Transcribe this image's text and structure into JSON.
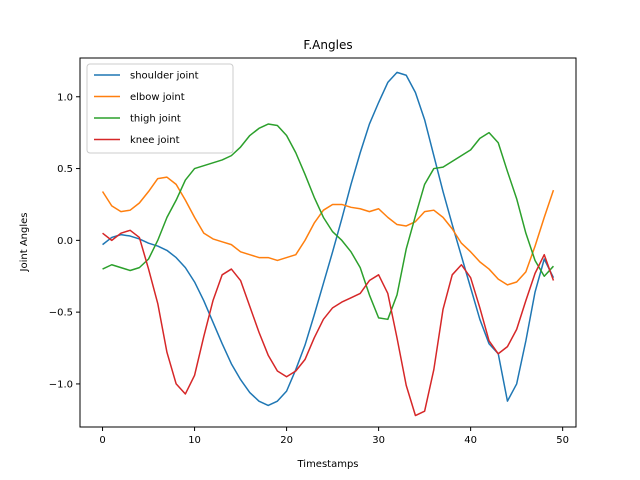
{
  "chart_data": {
    "type": "line",
    "title": "F.Angles",
    "xlabel": "Timestamps",
    "ylabel": "Joint Angles",
    "xlim": [
      -2.45,
      51.45
    ],
    "ylim": [
      -1.3,
      1.27
    ],
    "xticks": [
      0,
      10,
      20,
      30,
      40,
      50
    ],
    "yticks": [
      -1.0,
      -0.5,
      0.0,
      0.5,
      1.0
    ],
    "xtick_labels": [
      "0",
      "10",
      "20",
      "30",
      "40",
      "50"
    ],
    "ytick_labels": [
      "−1.0",
      "−0.5",
      "0.0",
      "0.5",
      "1.0"
    ],
    "grid": false,
    "legend_position": "upper-left",
    "x": [
      0,
      1,
      2,
      3,
      4,
      5,
      6,
      7,
      8,
      9,
      10,
      11,
      12,
      13,
      14,
      15,
      16,
      17,
      18,
      19,
      20,
      21,
      22,
      23,
      24,
      25,
      26,
      27,
      28,
      29,
      30,
      31,
      32,
      33,
      34,
      35,
      36,
      37,
      38,
      39,
      40,
      41,
      42,
      43,
      44,
      45,
      46,
      47,
      48,
      49
    ],
    "series": [
      {
        "name": "shoulder joint",
        "color": "#1f77b4",
        "values": [
          -0.03,
          0.02,
          0.04,
          0.03,
          0.01,
          -0.02,
          -0.04,
          -0.07,
          -0.12,
          -0.19,
          -0.29,
          -0.42,
          -0.57,
          -0.72,
          -0.86,
          -0.97,
          -1.06,
          -1.12,
          -1.15,
          -1.12,
          -1.05,
          -0.9,
          -0.73,
          -0.52,
          -0.3,
          -0.08,
          0.15,
          0.39,
          0.61,
          0.81,
          0.96,
          1.1,
          1.17,
          1.15,
          1.03,
          0.84,
          0.59,
          0.34,
          0.11,
          -0.11,
          -0.33,
          -0.55,
          -0.72,
          -0.79,
          -1.12,
          -1.0,
          -0.7,
          -0.36,
          -0.13,
          -0.26
        ]
      },
      {
        "name": "elbow joint",
        "color": "#ff7f0e",
        "values": [
          0.34,
          0.24,
          0.2,
          0.21,
          0.26,
          0.34,
          0.43,
          0.44,
          0.39,
          0.28,
          0.16,
          0.05,
          0.01,
          -0.01,
          -0.03,
          -0.08,
          -0.1,
          -0.12,
          -0.12,
          -0.14,
          -0.12,
          -0.1,
          0.0,
          0.12,
          0.21,
          0.25,
          0.25,
          0.23,
          0.22,
          0.2,
          0.22,
          0.16,
          0.11,
          0.1,
          0.13,
          0.2,
          0.21,
          0.16,
          0.08,
          -0.02,
          -0.08,
          -0.15,
          -0.2,
          -0.27,
          -0.31,
          -0.29,
          -0.22,
          -0.04,
          0.16,
          0.35
        ]
      },
      {
        "name": "thigh joint",
        "color": "#2ca02c",
        "values": [
          -0.2,
          -0.17,
          -0.19,
          -0.21,
          -0.19,
          -0.13,
          0.0,
          0.16,
          0.28,
          0.42,
          0.5,
          0.52,
          0.54,
          0.56,
          0.59,
          0.65,
          0.73,
          0.78,
          0.81,
          0.8,
          0.73,
          0.61,
          0.46,
          0.3,
          0.16,
          0.06,
          0.0,
          -0.08,
          -0.19,
          -0.38,
          -0.54,
          -0.55,
          -0.38,
          -0.06,
          0.17,
          0.39,
          0.5,
          0.51,
          0.55,
          0.59,
          0.63,
          0.71,
          0.75,
          0.68,
          0.48,
          0.29,
          0.05,
          -0.14,
          -0.25,
          -0.18
        ]
      },
      {
        "name": "knee joint",
        "color": "#d62728",
        "values": [
          0.05,
          0.0,
          0.05,
          0.07,
          0.02,
          -0.2,
          -0.44,
          -0.78,
          -1.0,
          -1.07,
          -0.94,
          -0.67,
          -0.42,
          -0.24,
          -0.2,
          -0.28,
          -0.46,
          -0.64,
          -0.8,
          -0.91,
          -0.95,
          -0.91,
          -0.83,
          -0.68,
          -0.55,
          -0.47,
          -0.43,
          -0.4,
          -0.37,
          -0.28,
          -0.24,
          -0.37,
          -0.68,
          -1.01,
          -1.22,
          -1.19,
          -0.9,
          -0.48,
          -0.24,
          -0.17,
          -0.26,
          -0.47,
          -0.7,
          -0.79,
          -0.74,
          -0.62,
          -0.42,
          -0.23,
          -0.1,
          -0.28
        ]
      }
    ]
  }
}
